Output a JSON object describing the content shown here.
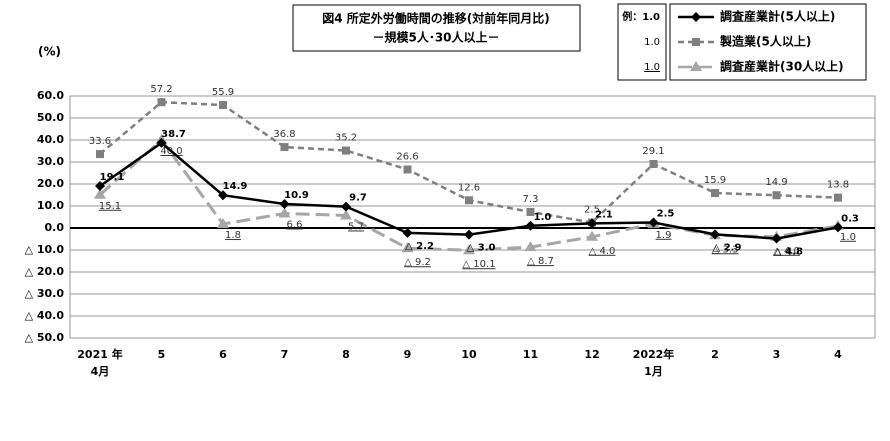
{
  "chart_data": {
    "type": "line",
    "title": "図4 所定外労働時間の推移(対前年同月比)",
    "subtitle": "－規模5人･30人以上－",
    "y_label": "(%)",
    "legend_examples": [
      "例：1.0",
      "1.0",
      "1.0"
    ],
    "categories": [
      "2021 年\n4月",
      "5",
      "6",
      "7",
      "8",
      "9",
      "10",
      "11",
      "12",
      "2022年\n1月",
      "2",
      "3",
      "4"
    ],
    "ylim": [
      -50,
      60
    ],
    "yticks": [
      {
        "value": 60,
        "label": "60.0"
      },
      {
        "value": 50,
        "label": "50.0"
      },
      {
        "value": 40,
        "label": "40.0"
      },
      {
        "value": 30,
        "label": "30.0"
      },
      {
        "value": 20,
        "label": "20.0"
      },
      {
        "value": 10,
        "label": "10.0"
      },
      {
        "value": 0,
        "label": "0.0"
      },
      {
        "value": -10,
        "label": "△ 10.0"
      },
      {
        "value": -20,
        "label": "△ 20.0"
      },
      {
        "value": -30,
        "label": "△ 30.0"
      },
      {
        "value": -40,
        "label": "△ 40.0"
      },
      {
        "value": -50,
        "label": "△ 50.0"
      }
    ],
    "grid": true,
    "series": [
      {
        "name": "調査産業計(5人以上)",
        "color": "#000000",
        "marker": "diamond",
        "values": [
          19.1,
          38.7,
          14.9,
          10.9,
          9.7,
          -2.2,
          -3.0,
          1.0,
          2.1,
          2.5,
          -2.9,
          -4.8,
          0.3
        ],
        "value_labels": [
          "19.1",
          "38.7",
          "14.9",
          "10.9",
          "9.7",
          "△ 2.2",
          "△ 3.0",
          "1.0",
          "2.1",
          "2.5",
          "△ 2.9",
          "△ 4.8",
          "0.3"
        ]
      },
      {
        "name": "製造業(5人以上)",
        "color": "#7f7f7f",
        "marker": "square",
        "values": [
          33.6,
          57.2,
          55.9,
          36.8,
          35.2,
          26.6,
          12.6,
          7.3,
          2.5,
          29.1,
          15.9,
          14.9,
          13.8
        ],
        "value_labels": [
          "33.6",
          "57.2",
          "55.9",
          "36.8",
          "35.2",
          "26.6",
          "12.6",
          "7.3",
          "2.5",
          "29.1",
          "15.9",
          "14.9",
          "13.8"
        ]
      },
      {
        "name": "調査産業計(30人以上)",
        "color": "#a6a6a6",
        "marker": "triangle",
        "values": [
          15.1,
          40.0,
          1.8,
          6.6,
          5.7,
          -9.2,
          -10.1,
          -8.7,
          -4.0,
          1.9,
          -3.3,
          -4.0,
          1.0
        ],
        "value_labels": [
          "15.1",
          "40.0",
          "1.8",
          "6.6",
          "5.7",
          "△ 9.2",
          "△ 10.1",
          "△ 8.7",
          "△ 4.0",
          "1.9",
          "△ 3.3",
          "△ 4.0",
          "1.0"
        ]
      }
    ]
  }
}
